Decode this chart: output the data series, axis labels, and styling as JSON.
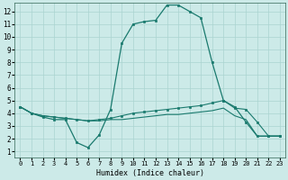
{
  "title": "",
  "xlabel": "Humidex (Indice chaleur)",
  "background_color": "#cceae8",
  "grid_color": "#aad4d0",
  "line_color": "#1a7a6e",
  "x_ticks": [
    0,
    1,
    2,
    3,
    4,
    5,
    6,
    7,
    8,
    9,
    10,
    11,
    12,
    13,
    14,
    15,
    16,
    17,
    18,
    19,
    20,
    21,
    22,
    23
  ],
  "y_ticks": [
    1,
    2,
    3,
    4,
    5,
    6,
    7,
    8,
    9,
    10,
    11,
    12
  ],
  "xlim": [
    -0.5,
    23.5
  ],
  "ylim": [
    0.5,
    12.7
  ],
  "line1_x": [
    0,
    1,
    2,
    3,
    4,
    5,
    6,
    7,
    8,
    9,
    10,
    11,
    12,
    13,
    14,
    15,
    16,
    17,
    18,
    19,
    20,
    21,
    22,
    23
  ],
  "line1_y": [
    4.5,
    4.0,
    3.7,
    3.5,
    3.5,
    1.7,
    1.3,
    2.3,
    4.3,
    9.5,
    11.0,
    11.2,
    11.3,
    12.5,
    12.5,
    12.0,
    11.5,
    8.0,
    5.0,
    4.5,
    3.3,
    2.2,
    2.2,
    2.2
  ],
  "line2_x": [
    0,
    1,
    2,
    3,
    4,
    5,
    6,
    7,
    8,
    9,
    10,
    11,
    12,
    13,
    14,
    15,
    16,
    17,
    18,
    19,
    20,
    21,
    22,
    23
  ],
  "line2_y": [
    4.5,
    4.0,
    3.8,
    3.7,
    3.6,
    3.5,
    3.4,
    3.5,
    3.6,
    3.8,
    4.0,
    4.1,
    4.2,
    4.3,
    4.4,
    4.5,
    4.6,
    4.8,
    5.0,
    4.4,
    4.3,
    3.3,
    2.2,
    2.2
  ],
  "line3_x": [
    0,
    1,
    2,
    3,
    4,
    5,
    6,
    7,
    8,
    9,
    10,
    11,
    12,
    13,
    14,
    15,
    16,
    17,
    18,
    19,
    20,
    21,
    22,
    23
  ],
  "line3_y": [
    4.5,
    4.0,
    3.8,
    3.7,
    3.6,
    3.5,
    3.4,
    3.4,
    3.5,
    3.5,
    3.6,
    3.7,
    3.8,
    3.9,
    3.9,
    4.0,
    4.1,
    4.2,
    4.4,
    3.8,
    3.5,
    2.2,
    2.2,
    2.2
  ]
}
